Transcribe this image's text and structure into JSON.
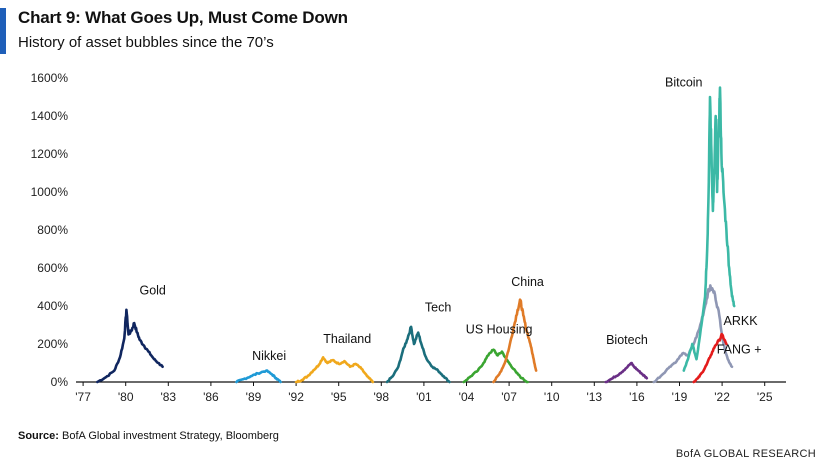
{
  "header": {
    "title": "Chart 9: What Goes Up, Must Come Down",
    "subtitle": "History of asset bubbles since the 70’s"
  },
  "footer": {
    "source_label": "Source:",
    "source_text": "BofA Global investment Strategy, Bloomberg",
    "brand": "BofA GLOBAL RESEARCH"
  },
  "chart_data": {
    "type": "line",
    "title": "Chart 9: What Goes Up, Must Come Down",
    "subtitle": "History of asset bubbles since the 70’s",
    "xlabel": "",
    "ylabel": "",
    "xlim": [
      1976.5,
      2026.5
    ],
    "ylim": [
      0,
      1600
    ],
    "x_ticks": [
      1977,
      1980,
      1983,
      1986,
      1989,
      1992,
      1995,
      1998,
      2001,
      2004,
      2007,
      2010,
      2013,
      2016,
      2019,
      2022,
      2025
    ],
    "x_tick_labels": [
      "'77",
      "'80",
      "'83",
      "'86",
      "'89",
      "'92",
      "'95",
      "'98",
      "'01",
      "'04",
      "'07",
      "'10",
      "'13",
      "'16",
      "'19",
      "'22",
      "'25"
    ],
    "y_ticks": [
      0,
      200,
      400,
      600,
      800,
      1000,
      1200,
      1400,
      1600
    ],
    "y_tick_labels": [
      "0%",
      "200%",
      "400%",
      "600%",
      "800%",
      "1000%",
      "1200%",
      "1400%",
      "1600%"
    ],
    "grid": false,
    "series": [
      {
        "name": "Gold",
        "color": "#10265f",
        "x": [
          1978.0,
          1978.6,
          1979.2,
          1979.6,
          1979.9,
          1980.05,
          1980.2,
          1980.4,
          1980.6,
          1980.8,
          1981.0,
          1981.3,
          1981.6,
          1982.0,
          1982.3,
          1982.6
        ],
        "y": [
          0,
          25,
          60,
          130,
          230,
          380,
          250,
          270,
          310,
          260,
          220,
          190,
          160,
          120,
          100,
          80
        ]
      },
      {
        "name": "Nikkei",
        "color": "#1f9ad6",
        "x": [
          1987.8,
          1988.3,
          1988.8,
          1989.3,
          1989.9,
          1990.3,
          1990.6,
          1990.9
        ],
        "y": [
          0,
          15,
          30,
          45,
          60,
          40,
          20,
          0
        ]
      },
      {
        "name": "Thailand",
        "color": "#f0a81c",
        "x": [
          1992.0,
          1992.4,
          1992.8,
          1993.2,
          1993.6,
          1993.9,
          1994.2,
          1994.6,
          1995.0,
          1995.4,
          1995.8,
          1996.2,
          1996.6,
          1997.0,
          1997.4
        ],
        "y": [
          0,
          10,
          30,
          60,
          90,
          130,
          100,
          115,
          95,
          110,
          80,
          95,
          70,
          30,
          0
        ]
      },
      {
        "name": "Tech",
        "color": "#1b6e7c",
        "x": [
          1998.4,
          1998.8,
          1999.2,
          1999.5,
          1999.8,
          2000.1,
          2000.3,
          2000.6,
          2000.9,
          2001.2,
          2001.6,
          2002.0,
          2002.4,
          2002.8
        ],
        "y": [
          0,
          30,
          80,
          160,
          220,
          290,
          200,
          260,
          180,
          120,
          80,
          60,
          30,
          0
        ]
      },
      {
        "name": "US Housing",
        "color": "#3aa531",
        "x": [
          2003.8,
          2004.3,
          2004.8,
          2005.2,
          2005.6,
          2005.9,
          2006.2,
          2006.5,
          2006.8,
          2007.1,
          2007.5,
          2007.9,
          2008.3
        ],
        "y": [
          0,
          30,
          60,
          100,
          150,
          170,
          140,
          160,
          120,
          90,
          50,
          20,
          0
        ]
      },
      {
        "name": "China",
        "color": "#e07b27",
        "x": [
          2005.9,
          2006.3,
          2006.7,
          2007.0,
          2007.3,
          2007.6,
          2007.8,
          2008.0,
          2008.2,
          2008.5,
          2008.7,
          2008.9
        ],
        "y": [
          0,
          40,
          100,
          180,
          280,
          380,
          430,
          350,
          280,
          200,
          130,
          60
        ]
      },
      {
        "name": "Biotech",
        "color": "#6a2f86",
        "x": [
          2013.8,
          2014.3,
          2014.8,
          2015.2,
          2015.6,
          2015.8,
          2016.1,
          2016.4,
          2016.7
        ],
        "y": [
          0,
          20,
          45,
          70,
          100,
          80,
          60,
          40,
          20
        ]
      },
      {
        "name": "ARKK",
        "color": "#8f97b4",
        "x": [
          2017.2,
          2017.8,
          2018.3,
          2018.8,
          2019.2,
          2019.6,
          2020.0,
          2020.4,
          2020.8,
          2021.0,
          2021.2,
          2021.5,
          2021.8,
          2022.1,
          2022.4,
          2022.7
        ],
        "y": [
          0,
          40,
          80,
          110,
          150,
          140,
          200,
          280,
          400,
          470,
          500,
          460,
          350,
          200,
          120,
          80
        ]
      },
      {
        "name": "FANG +",
        "color": "#e41b1b",
        "x": [
          2020.0,
          2020.3,
          2020.6,
          2020.9,
          2021.2,
          2021.5,
          2021.8,
          2022.0,
          2022.3
        ],
        "y": [
          0,
          20,
          50,
          90,
          140,
          190,
          220,
          250,
          200
        ]
      },
      {
        "name": "Bitcoin",
        "color": "#3cb9a6",
        "x": [
          2019.3,
          2019.6,
          2019.9,
          2020.2,
          2020.5,
          2020.8,
          2020.95,
          2021.05,
          2021.15,
          2021.25,
          2021.35,
          2021.45,
          2021.55,
          2021.65,
          2021.75,
          2021.85,
          2021.95,
          2022.1,
          2022.3,
          2022.5,
          2022.7,
          2022.85
        ],
        "y": [
          60,
          120,
          200,
          120,
          280,
          450,
          700,
          1000,
          1500,
          1200,
          900,
          1100,
          1400,
          1000,
          1300,
          1550,
          1200,
          1000,
          800,
          600,
          450,
          400
        ]
      }
    ],
    "annotations": [
      {
        "text": "Gold",
        "x": 1981.9,
        "y": 460
      },
      {
        "text": "Nikkei",
        "x": 1990.1,
        "y": 115
      },
      {
        "text": "Thailand",
        "x": 1995.6,
        "y": 205
      },
      {
        "text": "Tech",
        "x": 2002.0,
        "y": 370
      },
      {
        "text": "US Housing",
        "x": 2006.3,
        "y": 255
      },
      {
        "text": "China",
        "x": 2008.3,
        "y": 505
      },
      {
        "text": "Biotech",
        "x": 2015.3,
        "y": 200
      },
      {
        "text": "Bitcoin",
        "x": 2019.3,
        "y": 1555
      },
      {
        "text": "ARKK",
        "x": 2023.3,
        "y": 300
      },
      {
        "text": "FANG +",
        "x": 2023.2,
        "y": 150
      }
    ]
  }
}
